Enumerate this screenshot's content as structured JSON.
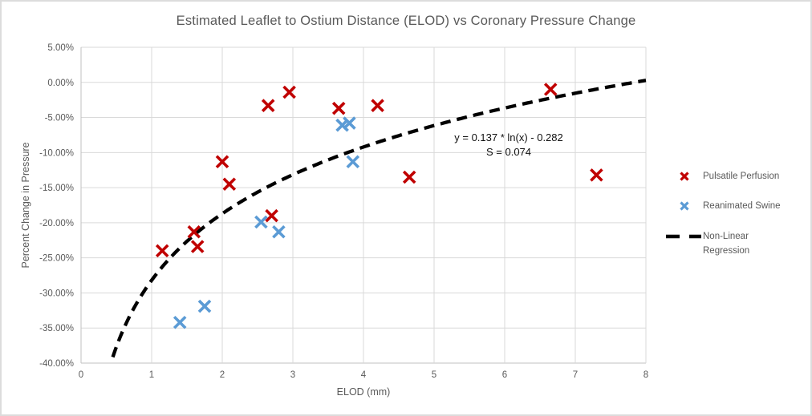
{
  "chart_data": {
    "type": "scatter",
    "title": "Estimated Leaflet to Ostium Distance (ELOD) vs Coronary Pressure Change",
    "xlabel": "ELOD (mm)",
    "ylabel": "Percent Change in Pressure",
    "xlim": [
      0,
      8
    ],
    "ylim": [
      -40,
      5
    ],
    "grid": true,
    "legend_position": "right",
    "x_tick_values": [
      0,
      1,
      2,
      3,
      4,
      5,
      6,
      7,
      8
    ],
    "x_tick_labels": [
      "0",
      "1",
      "2",
      "3",
      "4",
      "5",
      "6",
      "7",
      "8"
    ],
    "y_tick_values": [
      5,
      0,
      -5,
      -10,
      -15,
      -20,
      -25,
      -30,
      -35,
      -40
    ],
    "y_tick_labels": [
      "5.00%",
      "0.00%",
      "-5.00%",
      "-10.00%",
      "-15.00%",
      "-20.00%",
      "-25.00%",
      "-30.00%",
      "-35.00%",
      "-40.00%"
    ],
    "series": [
      {
        "name": "Pulsatile Perfusion",
        "marker": "x",
        "color": "#c00000",
        "points": [
          [
            1.15,
            -24.0
          ],
          [
            1.6,
            -21.3
          ],
          [
            1.65,
            -23.4
          ],
          [
            2.0,
            -11.3
          ],
          [
            2.1,
            -14.5
          ],
          [
            2.65,
            -3.3
          ],
          [
            2.7,
            -19.0
          ],
          [
            2.95,
            -1.4
          ],
          [
            3.65,
            -3.7
          ],
          [
            4.2,
            -3.3
          ],
          [
            4.65,
            -13.5
          ],
          [
            6.65,
            -1.0
          ],
          [
            7.3,
            -13.2
          ]
        ]
      },
      {
        "name": "Reanimated Swine",
        "marker": "x",
        "color": "#5b9bd5",
        "points": [
          [
            1.4,
            -34.2
          ],
          [
            1.75,
            -31.9
          ],
          [
            2.55,
            -19.9
          ],
          [
            2.8,
            -21.3
          ],
          [
            3.7,
            -6.1
          ],
          [
            3.8,
            -5.8
          ],
          [
            3.85,
            -11.3
          ]
        ]
      }
    ],
    "regression": {
      "name": "Non-Linear Regression",
      "label_lines": [
        "Non-Linear",
        "Regression"
      ],
      "equation": "y = 0.137 * ln(x) - 0.282",
      "s_value": "S = 0.074",
      "a": 0.137,
      "b": -0.282,
      "x_start": 0.45,
      "x_end": 8,
      "style": "dashed",
      "color": "#000000"
    }
  },
  "colors": {
    "pulsatile": "#c00000",
    "reanimated": "#5b9bd5",
    "regression": "#000000",
    "gridline": "#d9d9d9",
    "axis_line": "#c0c0c0",
    "text": "#595959",
    "annotation_text": "#111111",
    "border": "#dcdcdc"
  }
}
